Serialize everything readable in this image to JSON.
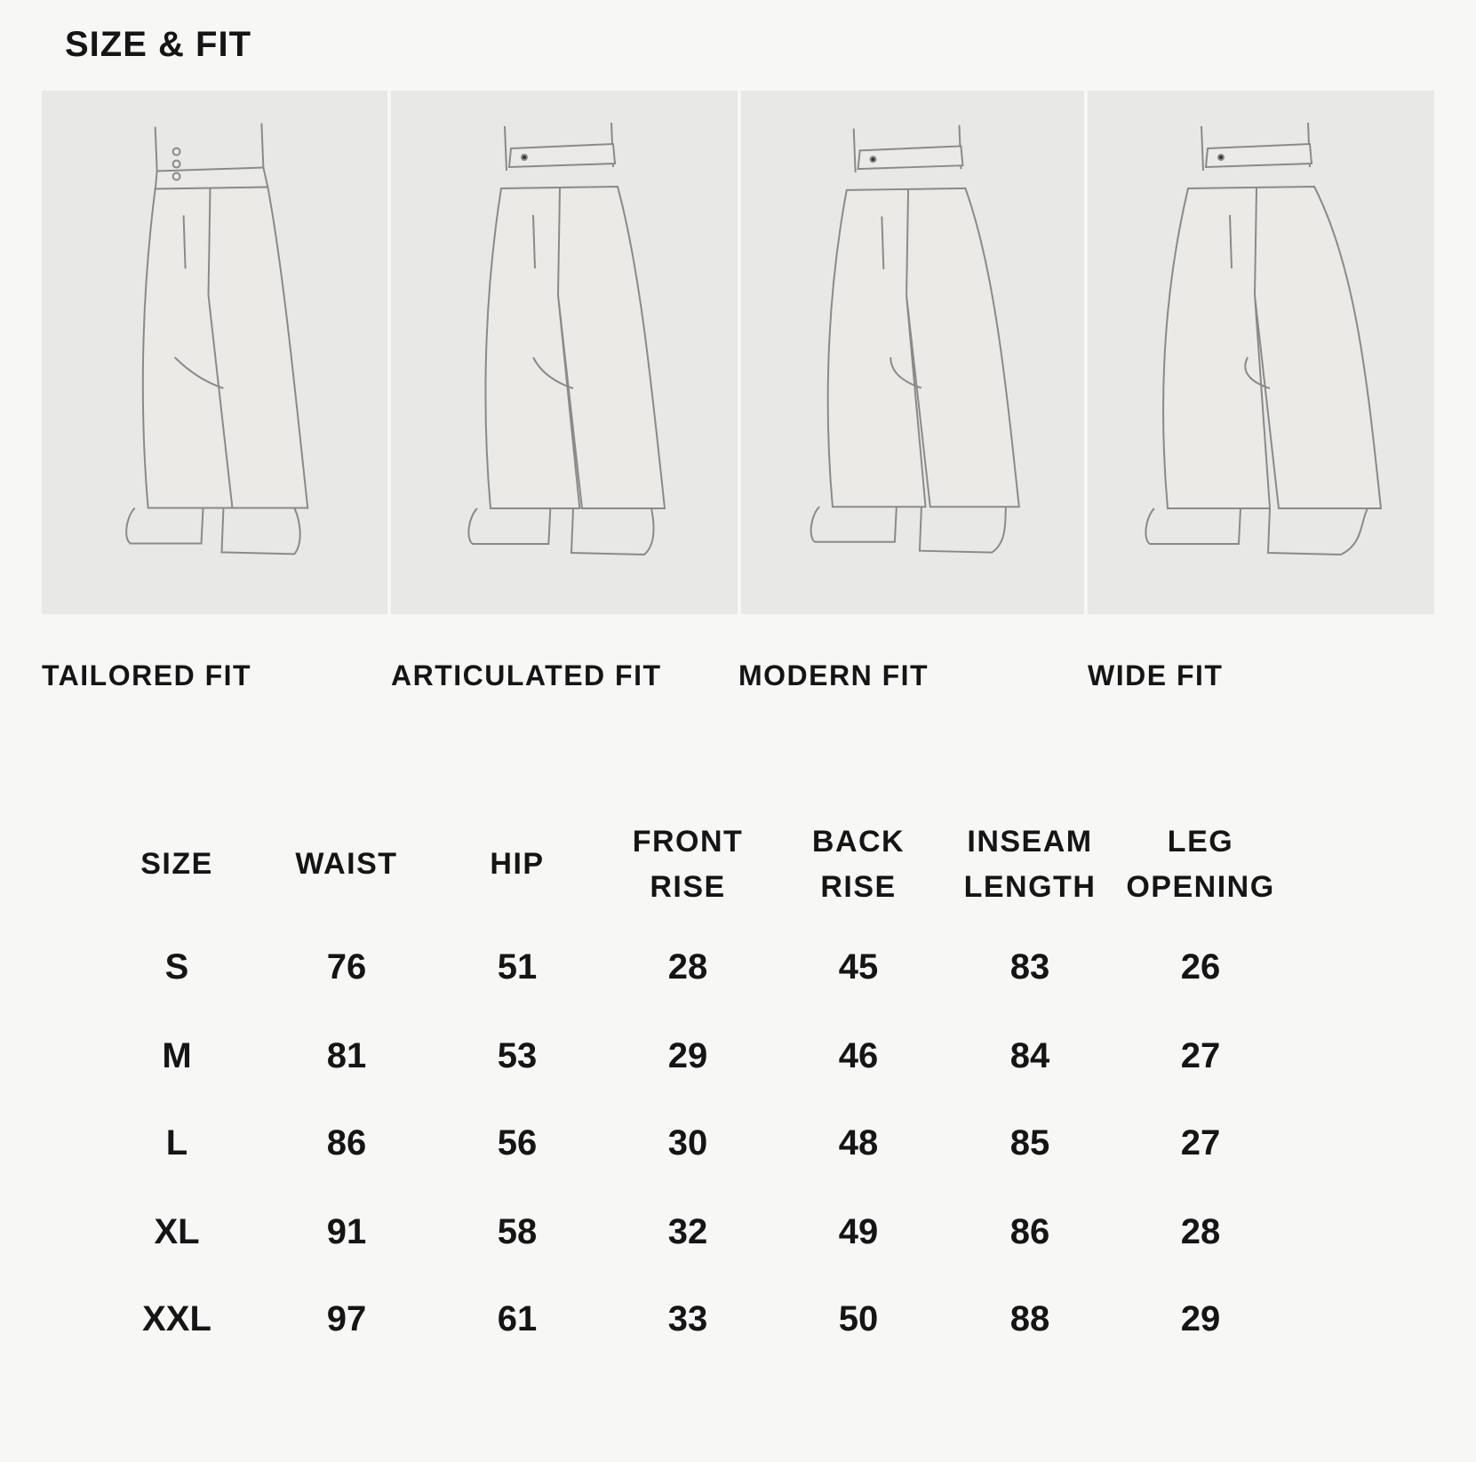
{
  "title": "SIZE & FIT",
  "fits": [
    {
      "label": "TAILORED FIT",
      "icon": "tailored-pants-illustration"
    },
    {
      "label": "ARTICULATED FIT",
      "icon": "articulated-pants-illustration"
    },
    {
      "label": "MODERN FIT",
      "icon": "modern-pants-illustration"
    },
    {
      "label": "WIDE FIT",
      "icon": "wide-pants-illustration"
    }
  ],
  "table": {
    "headers": [
      {
        "line1": "SIZE",
        "line2": ""
      },
      {
        "line1": "WAIST",
        "line2": ""
      },
      {
        "line1": "HIP",
        "line2": ""
      },
      {
        "line1": "FRONT",
        "line2": "RISE"
      },
      {
        "line1": "BACK",
        "line2": "RISE"
      },
      {
        "line1": "INSEAM",
        "line2": "LENGTH"
      },
      {
        "line1": "LEG",
        "line2": "OPENING"
      }
    ],
    "rows": [
      [
        "S",
        "76",
        "51",
        "28",
        "45",
        "83",
        "26"
      ],
      [
        "M",
        "81",
        "53",
        "29",
        "46",
        "84",
        "27"
      ],
      [
        "L",
        "86",
        "56",
        "30",
        "48",
        "85",
        "27"
      ],
      [
        "XL",
        "91",
        "58",
        "32",
        "49",
        "86",
        "28"
      ],
      [
        "XXL",
        "97",
        "61",
        "33",
        "50",
        "88",
        "29"
      ]
    ]
  },
  "colors": {
    "background": "#f7f7f6",
    "panel": "#e8e8e7",
    "text": "#151515",
    "sketch": "#8a8a8a"
  }
}
